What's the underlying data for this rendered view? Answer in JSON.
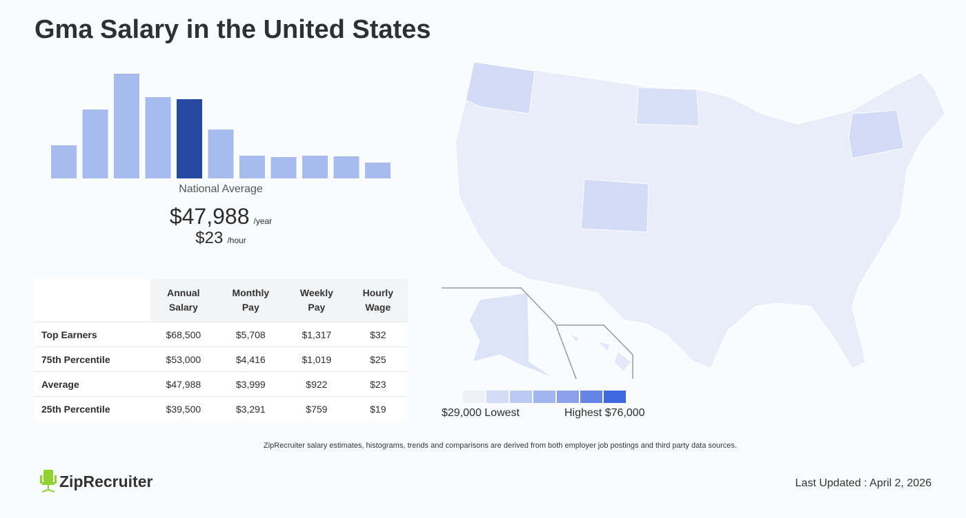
{
  "title": "Gma Salary in the United States",
  "chart_data": {
    "type": "bar",
    "values": [
      48,
      100,
      152,
      118,
      115,
      71,
      33,
      31,
      33,
      32,
      23
    ],
    "highlight_index": 4,
    "colors": {
      "bar": "#a8bbee",
      "highlight": "#2748a0"
    }
  },
  "national": {
    "label": "National Average",
    "yearly": "$47,988",
    "yearly_unit": "/year",
    "hourly": "$23",
    "hourly_unit": "/hour"
  },
  "table": {
    "headers": [
      [
        "Annual",
        "Salary"
      ],
      [
        "Monthly",
        "Pay"
      ],
      [
        "Weekly",
        "Pay"
      ],
      [
        "Hourly",
        "Wage"
      ]
    ],
    "rows": [
      [
        "Top Earners",
        "$68,500",
        "$5,708",
        "$1,317",
        "$32"
      ],
      [
        "75th Percentile",
        "$53,000",
        "$4,416",
        "$1,019",
        "$25"
      ],
      [
        "Average",
        "$47,988",
        "$3,999",
        "$922",
        "$23"
      ],
      [
        "25th Percentile",
        "$39,500",
        "$3,291",
        "$759",
        "$19"
      ]
    ]
  },
  "map": {
    "legend_colors": [
      "#eef1f8",
      "#d2dcf6",
      "#bccaf2",
      "#a3b5ee",
      "#8aa1ea",
      "#6584e4",
      "#3d68df"
    ],
    "low": "$29,000 Lowest",
    "high": "Highest $76,000"
  },
  "note": "ZipRecruiter salary estimates, histograms, trends and comparisons are derived from both employer job postings and third party data sources.",
  "logo": "ZipRecruiter",
  "updated": "Last Updated : April 2, 2026"
}
